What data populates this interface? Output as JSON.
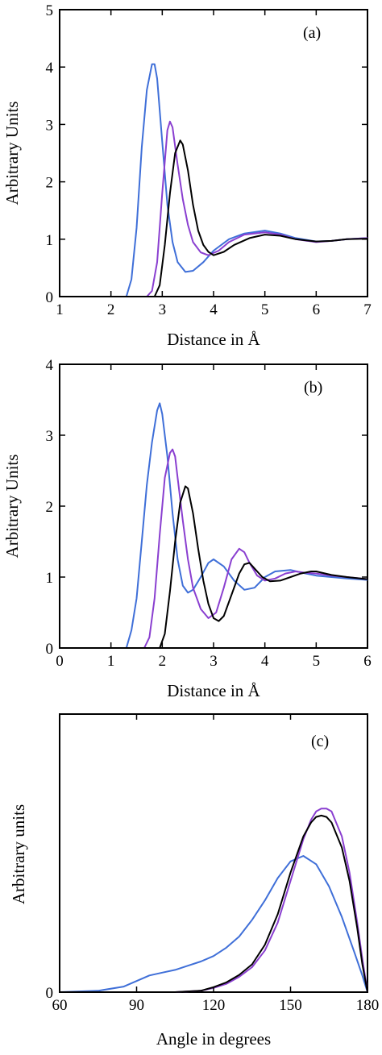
{
  "colors": {
    "blue": "#3f6fd8",
    "purple": "#8a3fd0",
    "black": "#000000"
  },
  "chart_data": [
    {
      "type": "line",
      "panel_label": "(a)",
      "xlabel": "Distance in Å",
      "ylabel": "Arbitrary Units",
      "xlim": [
        1,
        7
      ],
      "ylim": [
        0,
        5
      ],
      "xticks": [
        1,
        2,
        3,
        4,
        5,
        6,
        7
      ],
      "yticks": [
        0,
        1,
        2,
        3,
        4,
        5
      ],
      "grid": false,
      "series": [
        {
          "color": "#3f6fd8",
          "x": [
            1.0,
            2.3,
            2.4,
            2.5,
            2.6,
            2.7,
            2.8,
            2.85,
            2.9,
            3.0,
            3.1,
            3.2,
            3.3,
            3.45,
            3.6,
            3.8,
            4.0,
            4.3,
            4.6,
            5.0,
            5.3,
            5.6,
            6.0,
            6.3,
            6.6,
            7.0
          ],
          "y": [
            0.0,
            0.0,
            0.3,
            1.2,
            2.6,
            3.6,
            4.05,
            4.05,
            3.8,
            2.7,
            1.6,
            0.95,
            0.6,
            0.43,
            0.45,
            0.6,
            0.8,
            1.0,
            1.1,
            1.15,
            1.1,
            1.02,
            0.96,
            0.97,
            1.0,
            1.02
          ]
        },
        {
          "color": "#8a3fd0",
          "x": [
            1.0,
            2.7,
            2.8,
            2.9,
            3.0,
            3.1,
            3.15,
            3.2,
            3.3,
            3.4,
            3.5,
            3.6,
            3.75,
            3.9,
            4.1,
            4.3,
            4.6,
            5.0,
            5.3,
            5.6,
            6.0,
            6.3,
            6.6,
            7.0
          ],
          "y": [
            0.0,
            0.0,
            0.1,
            0.6,
            1.8,
            2.9,
            3.05,
            2.95,
            2.3,
            1.7,
            1.25,
            0.95,
            0.77,
            0.72,
            0.8,
            0.95,
            1.08,
            1.12,
            1.08,
            1.0,
            0.95,
            0.97,
            1.0,
            1.02
          ]
        },
        {
          "color": "#000000",
          "x": [
            1.0,
            2.85,
            2.95,
            3.05,
            3.15,
            3.25,
            3.35,
            3.4,
            3.5,
            3.6,
            3.7,
            3.8,
            3.9,
            4.0,
            4.2,
            4.4,
            4.7,
            5.0,
            5.3,
            5.6,
            6.0,
            6.3,
            6.6,
            7.0
          ],
          "y": [
            0.0,
            0.0,
            0.2,
            0.9,
            1.8,
            2.5,
            2.72,
            2.65,
            2.2,
            1.6,
            1.15,
            0.9,
            0.78,
            0.72,
            0.78,
            0.9,
            1.02,
            1.08,
            1.06,
            1.0,
            0.96,
            0.97,
            1.0,
            1.01
          ]
        }
      ]
    },
    {
      "type": "line",
      "panel_label": "(b)",
      "xlabel": "Distance in Å",
      "ylabel": "Arbitrary Units",
      "xlim": [
        0,
        6
      ],
      "ylim": [
        0,
        4
      ],
      "xticks": [
        0,
        1,
        2,
        3,
        4,
        5,
        6
      ],
      "yticks": [
        0,
        1,
        2,
        3,
        4
      ],
      "grid": false,
      "series": [
        {
          "color": "#3f6fd8",
          "x": [
            0.0,
            1.3,
            1.4,
            1.5,
            1.6,
            1.7,
            1.8,
            1.9,
            1.95,
            2.0,
            2.1,
            2.2,
            2.3,
            2.4,
            2.5,
            2.6,
            2.75,
            2.9,
            3.0,
            3.2,
            3.4,
            3.6,
            3.8,
            4.0,
            4.2,
            4.5,
            4.8,
            5.0,
            5.3,
            5.6,
            6.0
          ],
          "y": [
            0.0,
            0.0,
            0.25,
            0.7,
            1.5,
            2.3,
            2.9,
            3.35,
            3.45,
            3.3,
            2.7,
            1.9,
            1.25,
            0.88,
            0.78,
            0.82,
            1.0,
            1.2,
            1.25,
            1.15,
            0.95,
            0.82,
            0.85,
            1.0,
            1.08,
            1.1,
            1.05,
            1.02,
            1.0,
            0.98,
            0.96
          ]
        },
        {
          "color": "#8a3fd0",
          "x": [
            0.0,
            1.65,
            1.75,
            1.85,
            1.95,
            2.05,
            2.15,
            2.2,
            2.25,
            2.3,
            2.4,
            2.5,
            2.6,
            2.75,
            2.9,
            3.05,
            3.2,
            3.35,
            3.5,
            3.6,
            3.7,
            3.85,
            4.0,
            4.2,
            4.4,
            4.6,
            4.8,
            5.0,
            5.3,
            5.6,
            6.0
          ],
          "y": [
            0.0,
            0.0,
            0.15,
            0.7,
            1.6,
            2.4,
            2.75,
            2.8,
            2.7,
            2.4,
            1.8,
            1.25,
            0.85,
            0.55,
            0.42,
            0.5,
            0.85,
            1.25,
            1.4,
            1.35,
            1.2,
            1.02,
            0.95,
            0.98,
            1.05,
            1.08,
            1.06,
            1.05,
            1.02,
            1.0,
            0.97
          ]
        },
        {
          "color": "#000000",
          "x": [
            0.0,
            1.95,
            2.05,
            2.15,
            2.25,
            2.35,
            2.45,
            2.5,
            2.6,
            2.7,
            2.8,
            2.9,
            3.0,
            3.1,
            3.2,
            3.35,
            3.5,
            3.6,
            3.7,
            3.8,
            3.95,
            4.1,
            4.3,
            4.5,
            4.7,
            4.9,
            5.0,
            5.3,
            5.6,
            6.0
          ],
          "y": [
            0.0,
            0.0,
            0.2,
            0.8,
            1.5,
            2.05,
            2.28,
            2.25,
            1.9,
            1.4,
            0.95,
            0.62,
            0.42,
            0.38,
            0.45,
            0.75,
            1.05,
            1.18,
            1.2,
            1.12,
            1.0,
            0.94,
            0.95,
            1.0,
            1.05,
            1.08,
            1.08,
            1.03,
            1.0,
            0.97
          ]
        }
      ]
    },
    {
      "type": "line",
      "panel_label": "(c)",
      "xlabel": "Angle in degrees",
      "ylabel": "Arbitrary units",
      "xlim": [
        60,
        180
      ],
      "ylim": [
        0,
        1
      ],
      "xticks": [
        60,
        90,
        120,
        150,
        180
      ],
      "yticks": [
        0
      ],
      "ytick_labels": [
        "0"
      ],
      "grid": false,
      "baseline_dotted": true,
      "series": [
        {
          "color": "#3f6fd8",
          "x": [
            60,
            75,
            85,
            90,
            95,
            100,
            105,
            110,
            115,
            120,
            125,
            130,
            135,
            140,
            145,
            150,
            155,
            160,
            165,
            170,
            175,
            178,
            180
          ],
          "y": [
            0.0,
            0.005,
            0.02,
            0.04,
            0.06,
            0.07,
            0.08,
            0.095,
            0.11,
            0.13,
            0.16,
            0.2,
            0.26,
            0.33,
            0.41,
            0.47,
            0.49,
            0.46,
            0.38,
            0.27,
            0.14,
            0.06,
            0.0
          ]
        },
        {
          "color": "#8a3fd0",
          "x": [
            60,
            105,
            115,
            120,
            125,
            130,
            135,
            140,
            145,
            150,
            155,
            158,
            160,
            162,
            164,
            166,
            170,
            173,
            176,
            178,
            180
          ],
          "y": [
            0.0,
            0.0,
            0.005,
            0.015,
            0.03,
            0.055,
            0.09,
            0.15,
            0.25,
            0.4,
            0.55,
            0.62,
            0.65,
            0.66,
            0.66,
            0.65,
            0.56,
            0.43,
            0.25,
            0.12,
            0.0
          ]
        },
        {
          "color": "#000000",
          "x": [
            60,
            105,
            115,
            120,
            125,
            130,
            135,
            140,
            145,
            150,
            155,
            158,
            160,
            162,
            164,
            166,
            170,
            173,
            176,
            178,
            180
          ],
          "y": [
            0.0,
            0.0,
            0.005,
            0.018,
            0.035,
            0.062,
            0.1,
            0.17,
            0.28,
            0.43,
            0.56,
            0.61,
            0.63,
            0.635,
            0.63,
            0.61,
            0.52,
            0.4,
            0.23,
            0.1,
            0.0
          ]
        }
      ]
    }
  ]
}
